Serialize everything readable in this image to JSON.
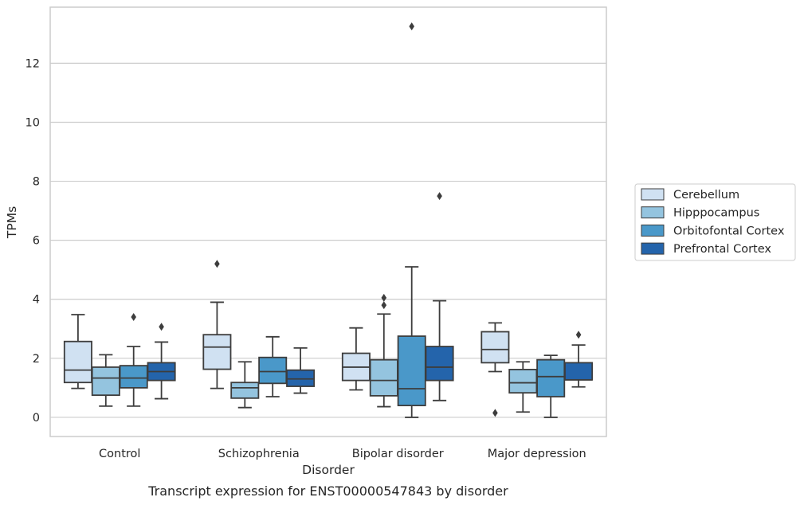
{
  "caption": "Transcript expression for ENST00000547843 by disorder",
  "chart_data": {
    "type": "box",
    "xlabel": "Disorder",
    "ylabel": "TPMs",
    "ylim": [
      -0.65,
      13.9
    ],
    "yticks": [
      0,
      2,
      4,
      6,
      8,
      10,
      12
    ],
    "grid": "horizontal",
    "legend_position": "right",
    "categories": [
      "Control",
      "Schizophrenia",
      "Bipolar disorder",
      "Major depression"
    ],
    "series": [
      {
        "name": "Cerebellum",
        "color": "#d0e1f2",
        "boxes": [
          {
            "whisker_low": 0.98,
            "q1": 1.18,
            "median": 1.6,
            "q3": 2.57,
            "whisker_high": 3.48,
            "outliers": []
          },
          {
            "whisker_low": 0.98,
            "q1": 1.63,
            "median": 2.38,
            "q3": 2.8,
            "whisker_high": 3.9,
            "outliers": [
              5.2
            ]
          },
          {
            "whisker_low": 0.93,
            "q1": 1.25,
            "median": 1.7,
            "q3": 2.17,
            "whisker_high": 3.03,
            "outliers": []
          },
          {
            "whisker_low": 1.55,
            "q1": 1.85,
            "median": 2.3,
            "q3": 2.9,
            "whisker_high": 3.2,
            "outliers": [
              0.15
            ]
          }
        ]
      },
      {
        "name": "Hipppocampus",
        "color": "#94c4df",
        "boxes": [
          {
            "whisker_low": 0.38,
            "q1": 0.75,
            "median": 1.33,
            "q3": 1.7,
            "whisker_high": 2.12,
            "outliers": []
          },
          {
            "whisker_low": 0.33,
            "q1": 0.65,
            "median": 1.0,
            "q3": 1.18,
            "whisker_high": 1.88,
            "outliers": []
          },
          {
            "whisker_low": 0.36,
            "q1": 0.73,
            "median": 1.25,
            "q3": 1.95,
            "whisker_high": 3.5,
            "outliers": [
              3.8,
              4.05
            ]
          },
          {
            "whisker_low": 0.18,
            "q1": 0.83,
            "median": 1.17,
            "q3": 1.62,
            "whisker_high": 1.88,
            "outliers": []
          }
        ]
      },
      {
        "name": "Orbitofontal Cortex",
        "color": "#4a98c9",
        "boxes": [
          {
            "whisker_low": 0.38,
            "q1": 1.0,
            "median": 1.33,
            "q3": 1.75,
            "whisker_high": 2.4,
            "outliers": [
              3.4
            ]
          },
          {
            "whisker_low": 0.7,
            "q1": 1.15,
            "median": 1.55,
            "q3": 2.03,
            "whisker_high": 2.73,
            "outliers": []
          },
          {
            "whisker_low": 0.0,
            "q1": 0.4,
            "median": 0.97,
            "q3": 2.75,
            "whisker_high": 5.1,
            "outliers": [
              13.25
            ]
          },
          {
            "whisker_low": 0.0,
            "q1": 0.7,
            "median": 1.38,
            "q3": 1.95,
            "whisker_high": 2.1,
            "outliers": []
          }
        ]
      },
      {
        "name": "Prefrontal Cortex",
        "color": "#2464ab",
        "boxes": [
          {
            "whisker_low": 0.63,
            "q1": 1.25,
            "median": 1.55,
            "q3": 1.85,
            "whisker_high": 2.55,
            "outliers": [
              3.07
            ]
          },
          {
            "whisker_low": 0.82,
            "q1": 1.05,
            "median": 1.3,
            "q3": 1.6,
            "whisker_high": 2.35,
            "outliers": []
          },
          {
            "whisker_low": 0.57,
            "q1": 1.25,
            "median": 1.7,
            "q3": 2.4,
            "whisker_high": 3.95,
            "outliers": [
              7.5
            ]
          },
          {
            "whisker_low": 1.03,
            "q1": 1.27,
            "median": 1.27,
            "q3": 1.85,
            "whisker_high": 2.45,
            "outliers": [
              2.8
            ]
          }
        ]
      }
    ]
  }
}
